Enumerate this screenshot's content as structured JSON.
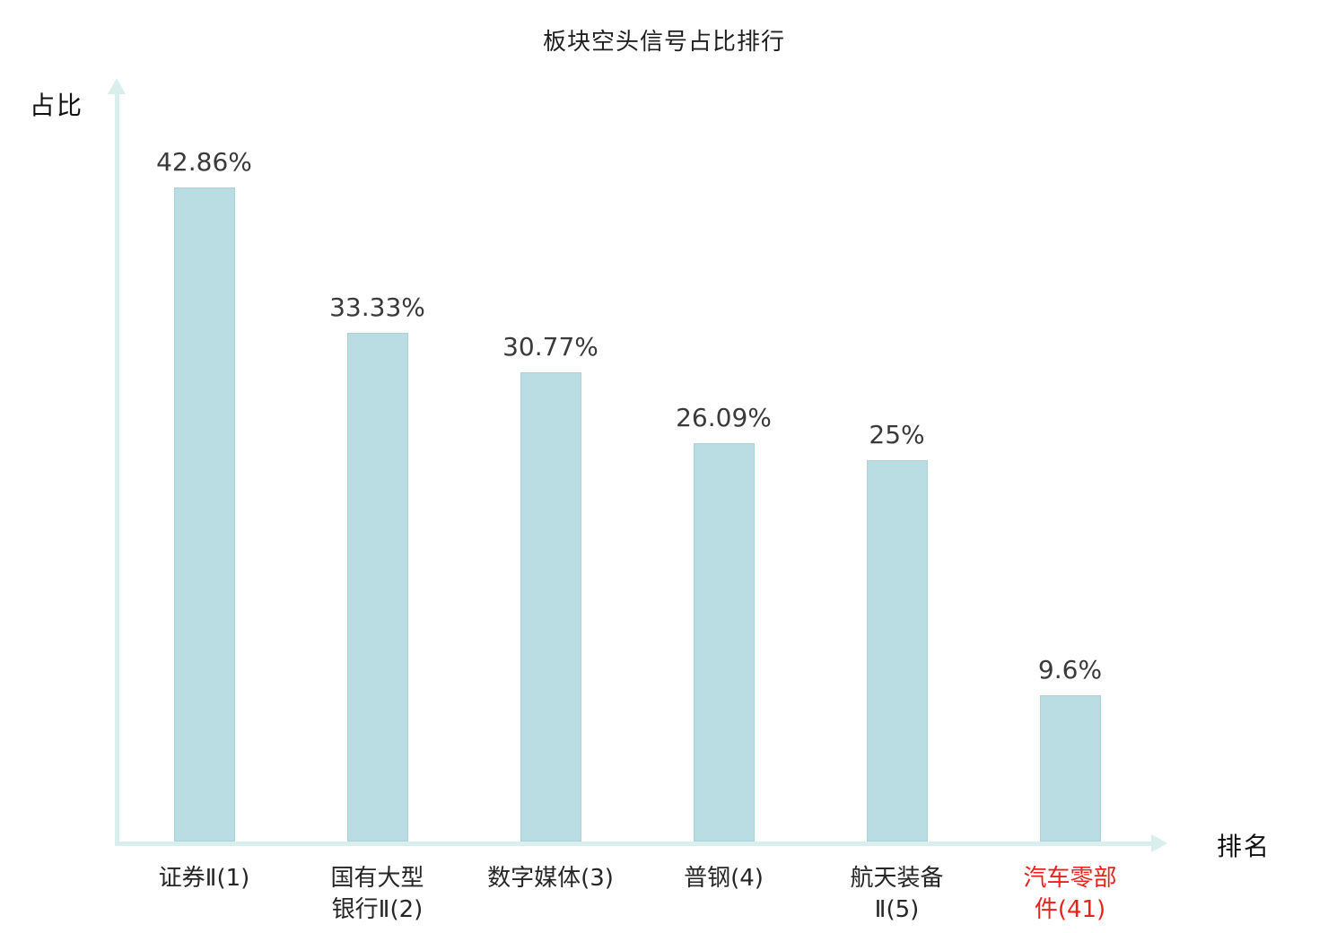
{
  "title": "板块空头信号占比排行",
  "axes": {
    "y_label": "占比",
    "x_label": "排名"
  },
  "colors": {
    "bar_fill": "#b9dde2",
    "bar_border": "#a9d3d9",
    "axis": "#d9efed",
    "value_text": "#3a3a3a",
    "category_text": "#262626",
    "highlight_text": "#e8231d"
  },
  "chart_data": {
    "type": "bar",
    "title": "板块空头信号占比排行",
    "xlabel": "排名",
    "ylabel": "占比",
    "categories": [
      "证券Ⅱ(1)",
      "国有大型\n银行Ⅱ(2)",
      "数字媒体(3)",
      "普钢(4)",
      "航天装备\nⅡ(5)",
      "汽车零部\n件(41)"
    ],
    "values": [
      42.86,
      33.33,
      30.77,
      26.09,
      25,
      9.6
    ],
    "value_labels": [
      "42.86%",
      "33.33%",
      "30.77%",
      "26.09%",
      "25%",
      "9.6%"
    ],
    "ylim": [
      0,
      50
    ],
    "highlight_index": 5,
    "grid": false,
    "legend": false
  }
}
